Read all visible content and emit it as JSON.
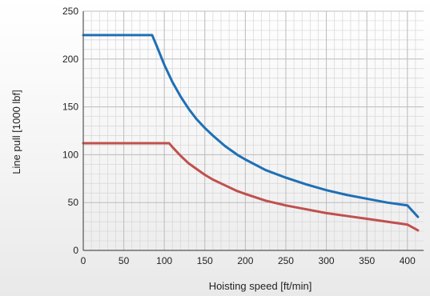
{
  "chart_data": {
    "type": "line",
    "title": "",
    "xlabel": "Hoisting speed [ft/min]",
    "ylabel": "Line pull [1000 lbf]",
    "xlim": [
      0,
      420
    ],
    "ylim": [
      0,
      250
    ],
    "x_ticks": [
      0,
      50,
      100,
      150,
      200,
      250,
      300,
      350,
      400
    ],
    "y_ticks": [
      0,
      50,
      100,
      150,
      200,
      250
    ],
    "grid": true,
    "legend": "none",
    "series": [
      {
        "color": "#1f6fb5",
        "x": [
          0,
          85,
          90,
          100,
          110,
          120,
          130,
          140,
          150,
          160,
          175,
          190,
          200,
          225,
          250,
          275,
          300,
          325,
          350,
          375,
          400,
          413
        ],
        "y": [
          225,
          225,
          215,
          194,
          176,
          161,
          148,
          137,
          128,
          120,
          109,
          100,
          95,
          84,
          76,
          69,
          63,
          58,
          54,
          50,
          47,
          35
        ]
      },
      {
        "color": "#c0504d",
        "x": [
          0,
          106,
          110,
          120,
          130,
          140,
          150,
          160,
          175,
          190,
          200,
          225,
          250,
          275,
          300,
          325,
          350,
          375,
          400,
          413
        ],
        "y": [
          112,
          112,
          108,
          99,
          91,
          85,
          79,
          74,
          68,
          62,
          59,
          52,
          47,
          43,
          39,
          36,
          33,
          30,
          27,
          21
        ]
      }
    ]
  }
}
